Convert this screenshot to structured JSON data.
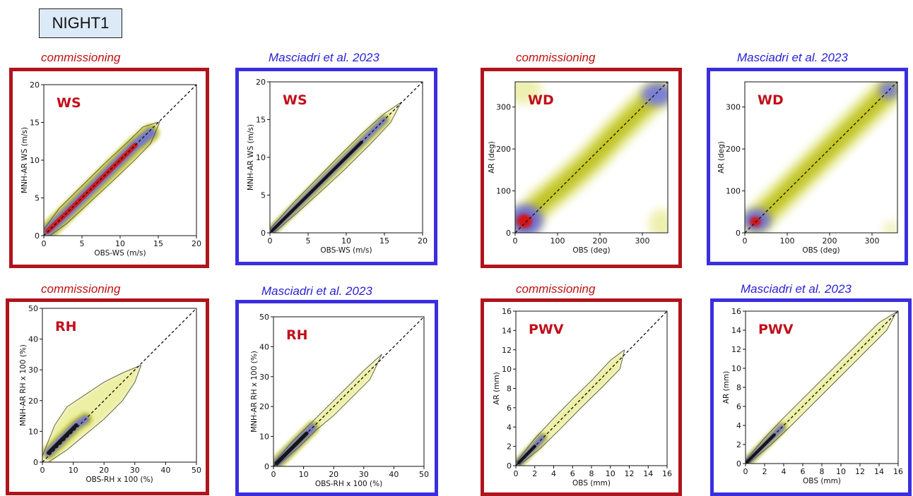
{
  "header": {
    "label": "NIGHT1"
  },
  "colors": {
    "commissioning": "#b0141c",
    "masciadri": "#3a2ee0",
    "var_label": "#c0101c"
  },
  "chart_data": [
    {
      "id": "ws_comm",
      "type": "heatmap",
      "source_label": "commissioning",
      "source": "commissioning",
      "var_label": "WS",
      "xlabel": "OBS-WS (m/s)",
      "ylabel": "MNH-AR WS (m/s)",
      "xlim": [
        0,
        20
      ],
      "ylim": [
        0,
        20
      ],
      "xticks": [
        0,
        5,
        10,
        15,
        20
      ],
      "yticks": [
        0,
        5,
        10,
        15,
        20
      ],
      "density_ridge": [
        [
          0.5,
          0.6
        ],
        [
          3,
          3
        ],
        [
          6,
          6
        ],
        [
          9,
          9
        ],
        [
          12,
          12
        ],
        [
          14,
          13.6
        ]
      ],
      "contour_upper": [
        [
          0,
          0.8
        ],
        [
          2,
          3.6
        ],
        [
          5,
          6.6
        ],
        [
          8,
          9.6
        ],
        [
          11,
          12.4
        ],
        [
          13,
          14.4
        ],
        [
          15.2,
          15.1
        ]
      ],
      "contour_lower": [
        [
          0.8,
          0
        ],
        [
          3,
          1.6
        ],
        [
          6,
          4.4
        ],
        [
          9,
          7.2
        ],
        [
          12,
          10.1
        ],
        [
          14,
          12.2
        ],
        [
          15.2,
          15.1
        ]
      ],
      "diagonal": true
    },
    {
      "id": "ws_mas",
      "type": "heatmap",
      "source_label": "Masciadri et al. 2023",
      "source": "masciadri",
      "var_label": "WS",
      "xlabel": "OBS-WS (m/s)",
      "ylabel": "MNH-AR WS (m/s)",
      "xlim": [
        0,
        20
      ],
      "ylim": [
        0,
        20
      ],
      "xticks": [
        0,
        5,
        10,
        15,
        20
      ],
      "yticks": [
        0,
        5,
        10,
        15,
        20
      ],
      "density_ridge": [
        [
          0.3,
          0.3
        ],
        [
          3,
          3
        ],
        [
          6,
          6
        ],
        [
          9,
          9
        ],
        [
          12,
          12
        ],
        [
          15,
          15
        ]
      ],
      "contour_upper": [
        [
          0,
          0.5
        ],
        [
          3,
          3.9
        ],
        [
          6,
          7
        ],
        [
          9,
          10.1
        ],
        [
          12,
          13.1
        ],
        [
          15,
          15.8
        ],
        [
          17.2,
          17.3
        ]
      ],
      "contour_lower": [
        [
          0.5,
          0
        ],
        [
          3.5,
          2.6
        ],
        [
          6.6,
          5.4
        ],
        [
          9.8,
          8.4
        ],
        [
          13,
          11.6
        ],
        [
          15.8,
          14.6
        ],
        [
          17.2,
          17.3
        ]
      ],
      "diagonal": true
    },
    {
      "id": "wd_comm",
      "type": "heatmap",
      "source_label": "commissioning",
      "source": "commissioning",
      "var_label": "WD",
      "xlabel": "OBS (deg)",
      "ylabel": "AR (deg)",
      "xlim": [
        0,
        360
      ],
      "ylim": [
        0,
        360
      ],
      "xticks": [
        0,
        100,
        200,
        300
      ],
      "yticks": [
        0,
        100,
        200,
        300
      ],
      "density_ridge": [
        [
          20,
          25
        ],
        [
          60,
          70
        ],
        [
          120,
          120
        ],
        [
          180,
          175
        ],
        [
          240,
          240
        ],
        [
          300,
          300
        ],
        [
          340,
          335
        ]
      ],
      "diagonal": true
    },
    {
      "id": "wd_mas",
      "type": "heatmap",
      "source_label": "Masciadri et al. 2023",
      "source": "masciadri",
      "var_label": "WD",
      "xlabel": "OBS (deg)",
      "ylabel": "AR (deg)",
      "xlim": [
        0,
        360
      ],
      "ylim": [
        0,
        360
      ],
      "xticks": [
        0,
        100,
        200,
        300
      ],
      "yticks": [
        0,
        100,
        200,
        300
      ],
      "density_ridge": [
        [
          25,
          25
        ],
        [
          60,
          60
        ],
        [
          120,
          120
        ],
        [
          180,
          180
        ],
        [
          240,
          240
        ],
        [
          300,
          300
        ],
        [
          345,
          345
        ]
      ],
      "diagonal": true
    },
    {
      "id": "rh_comm",
      "type": "heatmap",
      "source_label": "commissioning",
      "source": "commissioning",
      "var_label": "RH",
      "xlabel": "OBS-RH x 100 (%)",
      "ylabel": "MNH-AR RH x 100 (%)",
      "xlim": [
        0,
        50
      ],
      "ylim": [
        0,
        50
      ],
      "xticks": [
        0,
        10,
        20,
        30,
        40,
        50
      ],
      "yticks": [
        0,
        10,
        20,
        30,
        40,
        50
      ],
      "density_ridge": [
        [
          2,
          3
        ],
        [
          5,
          6
        ],
        [
          8,
          9
        ],
        [
          11,
          12
        ],
        [
          14,
          14
        ]
      ],
      "contour_upper": [
        [
          0,
          2
        ],
        [
          4,
          12
        ],
        [
          8,
          18
        ],
        [
          14,
          22
        ],
        [
          20,
          26
        ],
        [
          26,
          29
        ],
        [
          32,
          31.5
        ]
      ],
      "contour_lower": [
        [
          2,
          0
        ],
        [
          8,
          4
        ],
        [
          14,
          9
        ],
        [
          20,
          14
        ],
        [
          26,
          20
        ],
        [
          30,
          26
        ],
        [
          32,
          31.5
        ]
      ],
      "diagonal": true
    },
    {
      "id": "rh_mas",
      "type": "heatmap",
      "source_label": "Masciadri et al. 2023",
      "source": "masciadri",
      "var_label": "RH",
      "xlabel": "OBS-RH x 100 (%)",
      "ylabel": "MNH-AR RH x 100 (%)",
      "xlim": [
        0,
        50
      ],
      "ylim": [
        0,
        50
      ],
      "xticks": [
        0,
        10,
        20,
        30,
        40,
        50
      ],
      "yticks": [
        0,
        10,
        20,
        30,
        40,
        50
      ],
      "density_ridge": [
        [
          1,
          1
        ],
        [
          4,
          4
        ],
        [
          8,
          8
        ],
        [
          11,
          11
        ],
        [
          13,
          13
        ]
      ],
      "contour_upper": [
        [
          0,
          1
        ],
        [
          6,
          8
        ],
        [
          12,
          14
        ],
        [
          18,
          20
        ],
        [
          24,
          26
        ],
        [
          30,
          32
        ],
        [
          36,
          37.5
        ]
      ],
      "contour_lower": [
        [
          1,
          0
        ],
        [
          8,
          6
        ],
        [
          14,
          12
        ],
        [
          20,
          17
        ],
        [
          26,
          23
        ],
        [
          32,
          29
        ],
        [
          36,
          37.5
        ]
      ],
      "diagonal": true
    },
    {
      "id": "pwv_comm",
      "type": "heatmap",
      "source_label": "commissioning",
      "source": "commissioning",
      "var_label": "PWV",
      "xlabel": "OBS (mm)",
      "ylabel": "AR (mm)",
      "xlim": [
        0,
        16
      ],
      "ylim": [
        0,
        16
      ],
      "xticks": [
        0,
        2,
        4,
        6,
        8,
        10,
        12,
        14,
        16
      ],
      "yticks": [
        0,
        2,
        4,
        6,
        8,
        10,
        12,
        14,
        16
      ],
      "density_ridge": [
        [
          0.3,
          0.3
        ],
        [
          1,
          1
        ],
        [
          2,
          2
        ],
        [
          2.8,
          2.9
        ]
      ],
      "contour_upper": [
        [
          0,
          0.3
        ],
        [
          2,
          2.8
        ],
        [
          4,
          4.9
        ],
        [
          6,
          6.9
        ],
        [
          8,
          8.8
        ],
        [
          10,
          10.9
        ],
        [
          11.5,
          12
        ]
      ],
      "contour_lower": [
        [
          0.3,
          0
        ],
        [
          2.6,
          1.8
        ],
        [
          4.8,
          3.9
        ],
        [
          6.9,
          6
        ],
        [
          9,
          8
        ],
        [
          11,
          10
        ],
        [
          11.5,
          12
        ]
      ],
      "diagonal": true
    },
    {
      "id": "pwv_mas",
      "type": "heatmap",
      "source_label": "Masciadri et al. 2023",
      "source": "masciadri",
      "var_label": "PWV",
      "xlabel": "OBS (mm)",
      "ylabel": "AR (mm)",
      "xlim": [
        0,
        16
      ],
      "ylim": [
        0,
        16
      ],
      "xticks": [
        0,
        2,
        4,
        6,
        8,
        10,
        12,
        14,
        16
      ],
      "yticks": [
        0,
        2,
        4,
        6,
        8,
        10,
        12,
        14,
        16
      ],
      "density_ridge": [
        [
          0.2,
          0.2
        ],
        [
          1,
          1
        ],
        [
          2,
          2
        ],
        [
          3,
          3
        ],
        [
          3.8,
          3.8
        ]
      ],
      "contour_upper": [
        [
          0,
          0.3
        ],
        [
          2,
          2.7
        ],
        [
          4,
          4.8
        ],
        [
          6,
          6.8
        ],
        [
          8,
          8.8
        ],
        [
          10,
          10.8
        ],
        [
          12,
          12.8
        ],
        [
          14,
          14.8
        ],
        [
          15.8,
          15.9
        ]
      ],
      "contour_lower": [
        [
          0.3,
          0
        ],
        [
          2.7,
          2
        ],
        [
          4.8,
          4
        ],
        [
          6.8,
          6
        ],
        [
          8.8,
          8
        ],
        [
          10.8,
          10
        ],
        [
          12.8,
          12
        ],
        [
          14.8,
          14
        ],
        [
          15.8,
          15.9
        ]
      ],
      "diagonal": true
    }
  ]
}
